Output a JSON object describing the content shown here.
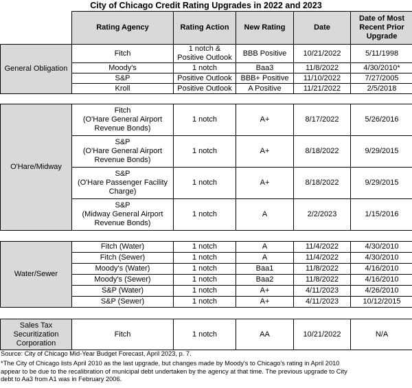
{
  "title": "City of Chicago Credit Rating Upgrades in 2022 and 2023",
  "headers": {
    "agency": "Rating Agency",
    "action": "Rating Action",
    "rating": "New Rating",
    "date": "Date",
    "prior_l1": "Date of Most",
    "prior_l2": "Recent Prior",
    "prior_l3": "Upgrade"
  },
  "go": {
    "label": "General Obligation",
    "rows": [
      {
        "agency": "Fitch",
        "action_l1": "1 notch &",
        "action_l2": "Positive Outlook",
        "rating": "BBB Positive",
        "date": "10/21/2022",
        "prior": "5/11/1998"
      },
      {
        "agency": "Moody's",
        "action": "1 notch",
        "rating": "Baa3",
        "date": "11/8/2022",
        "prior": "4/30/2010*"
      },
      {
        "agency": "S&P",
        "action": "Positive Outlook",
        "rating": "BBB+ Positive",
        "date": "11/10/2022",
        "prior": "7/27/2005"
      },
      {
        "agency": "Kroll",
        "action": "Positive Outlook",
        "rating": "A Positive",
        "date": "11/21/2022",
        "prior": "2/5/2018"
      }
    ]
  },
  "airport": {
    "label": "O'Hare/Midway",
    "rows": [
      {
        "agency_l1": "Fitch",
        "agency_l2": "(O'Hare General Airport",
        "agency_l3": "Revenue Bonds)",
        "action": "1 notch",
        "rating": "A+",
        "date": "8/17/2022",
        "prior": "5/26/2016"
      },
      {
        "agency_l1": "S&P",
        "agency_l2": "(O'Hare General Airport",
        "agency_l3": "Revenue Bonds)",
        "action": "1 notch",
        "rating": "A+",
        "date": "8/18/2022",
        "prior": "9/29/2015"
      },
      {
        "agency_l1": "S&P",
        "agency_l2": "(O'Hare Passenger Facility",
        "agency_l3": "Charge)",
        "action": "1 notch",
        "rating": "A+",
        "date": "8/18/2022",
        "prior": "9/29/2015"
      },
      {
        "agency_l1": "S&P",
        "agency_l2": "(Midway General Airport",
        "agency_l3": "Revenue Bonds)",
        "action": "1 notch",
        "rating": "A",
        "date": "2/2/2023",
        "prior": "1/15/2016"
      }
    ]
  },
  "water": {
    "label": "Water/Sewer",
    "rows": [
      {
        "agency": "Fitch (Water)",
        "action": "1 notch",
        "rating": "A",
        "date": "11/4/2022",
        "prior": "4/30/2010"
      },
      {
        "agency": "Fitch (Sewer)",
        "action": "1 notch",
        "rating": "A",
        "date": "11/4/2022",
        "prior": "4/30/2010"
      },
      {
        "agency": "Moody's (Water)",
        "action": "1 notch",
        "rating": "Baa1",
        "date": "11/8/2022",
        "prior": "4/16/2010"
      },
      {
        "agency": "Moody's (Sewer)",
        "action": "1 notch",
        "rating": "Baa2",
        "date": "11/8/2022",
        "prior": "4/16/2010"
      },
      {
        "agency": "S&P (Water)",
        "action": "1 notch",
        "rating": "A+",
        "date": "4/11/2023",
        "prior": "4/26/2010"
      },
      {
        "agency": "S&P (Sewer)",
        "action": "1 notch",
        "rating": "A+",
        "date": "4/11/2023",
        "prior": "10/12/2015"
      }
    ]
  },
  "sales": {
    "label_l1": "Sales Tax",
    "label_l2": "Securitization",
    "label_l3": "Corporation",
    "row": {
      "agency": "Fitch",
      "action": "1 notch",
      "rating": "AA",
      "date": "10/21/2022",
      "prior": "N/A"
    }
  },
  "footer": {
    "source": "Source: City of Chicago Mid-Year Budget Forecast, April 2023, p. 7.",
    "note_l1": "*The City of Chicago lists April 2010 as the last upgrade, but changes made by Moody's to Chicago's rating in April 2010",
    "note_l2": "appear to be due to the recalibration of municipal debt undertaken by the agency at that time. The previous upgrade to City",
    "note_l3": "debt to Aa3 from A1 was in February 2006."
  }
}
